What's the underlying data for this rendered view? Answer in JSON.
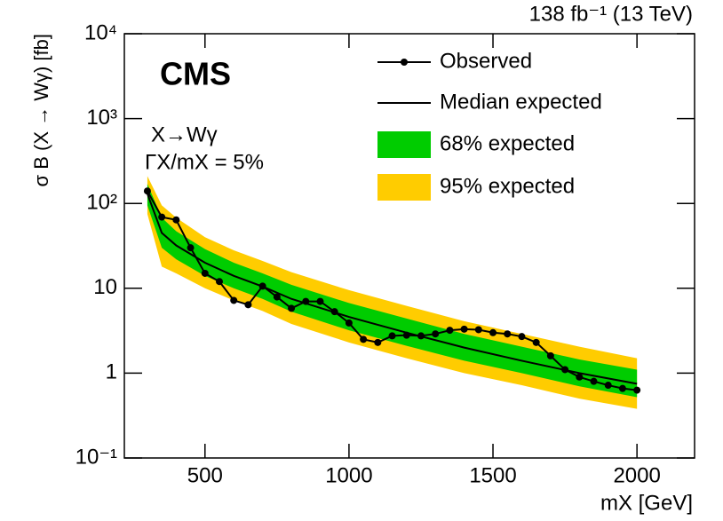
{
  "chart_data": {
    "type": "limit",
    "title": "138 fb⁻¹ (13 TeV)",
    "experiment": "CMS",
    "annotations": [
      "X→Wγ",
      "ΓX/mX = 5%"
    ],
    "xlabel": "mX [GeV]",
    "ylabel": "σ B (X → Wγ) [fb]",
    "xlim": [
      220,
      2200
    ],
    "xticks": [
      500,
      1000,
      1500,
      2000
    ],
    "ylim": [
      0.1,
      10000
    ],
    "yticks": [
      {
        "value": 0.1,
        "label": "10⁻¹"
      },
      1,
      10,
      {
        "value": 100,
        "label": "10²"
      },
      {
        "value": 1000,
        "label": "10³"
      },
      {
        "value": 10000,
        "label": "10⁴"
      }
    ],
    "log_y": true,
    "legend": "upper right",
    "observed": {
      "name": "Observed",
      "color": "#000000",
      "x": [
        300,
        350,
        400,
        450,
        500,
        550,
        600,
        650,
        700,
        750,
        800,
        850,
        900,
        950,
        1000,
        1050,
        1100,
        1150,
        1200,
        1250,
        1300,
        1350,
        1400,
        1450,
        1500,
        1550,
        1600,
        1650,
        1700,
        1750,
        1800,
        1850,
        1900,
        1950,
        2000
      ],
      "values": [
        140,
        69,
        64,
        30,
        15,
        12,
        7.2,
        6.4,
        10.6,
        7.9,
        5.8,
        7.0,
        7.0,
        5.3,
        3.9,
        2.5,
        2.3,
        2.75,
        2.8,
        2.75,
        2.9,
        3.2,
        3.3,
        3.25,
        3.0,
        2.9,
        2.7,
        2.3,
        1.6,
        1.1,
        0.9,
        0.8,
        0.72,
        0.66,
        0.63
      ]
    },
    "expected_x": [
      300,
      350,
      400,
      500,
      600,
      700,
      800,
      1000,
      1200,
      1400,
      1600,
      1800,
      2000
    ],
    "median": {
      "name": "Median expected",
      "color": "#000000",
      "values": [
        130,
        45,
        32,
        20,
        14,
        10.5,
        7.5,
        4.6,
        3.0,
        2.0,
        1.4,
        1.0,
        0.75
      ]
    },
    "band68": {
      "name": "68% expected",
      "color": "#00cc00",
      "lower": [
        95,
        30,
        22,
        14,
        10,
        7.5,
        5.3,
        3.2,
        2.1,
        1.4,
        1.0,
        0.7,
        0.52
      ],
      "upper": [
        170,
        68,
        47,
        29,
        20,
        15,
        11,
        6.7,
        4.4,
        2.9,
        2.05,
        1.45,
        1.1
      ]
    },
    "band95": {
      "name": "95% expected",
      "color": "#ffcc00",
      "lower": [
        75,
        18,
        15,
        10,
        7.2,
        5.4,
        3.8,
        2.3,
        1.5,
        1.0,
        0.72,
        0.5,
        0.38
      ],
      "upper": [
        210,
        95,
        68,
        40,
        28,
        21,
        15.5,
        9.5,
        6.2,
        4.1,
        2.9,
        2.05,
        1.5
      ]
    }
  }
}
